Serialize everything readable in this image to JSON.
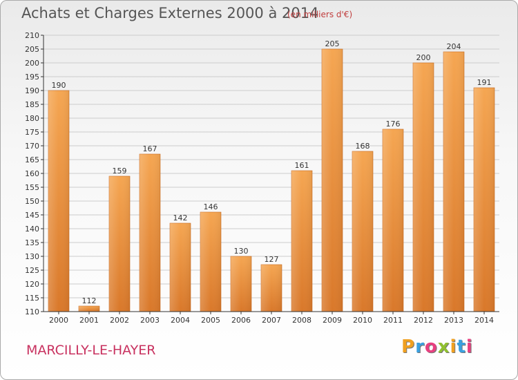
{
  "header": {
    "title": "Achats et Charges Externes 2000 à 2014",
    "subtitle": "(en milliers d'€)"
  },
  "footer": {
    "commune": "MARCILLY-LE-HAYER",
    "logo_text": "Proxiti",
    "logo_colors": [
      "#f0a020",
      "#3aa0e0",
      "#e84080",
      "#90c030",
      "#f0a020",
      "#3aa0e0",
      "#e84080"
    ]
  },
  "colors": {
    "bar_top": "#f5a652",
    "bar_bottom": "#d9782a",
    "grid": "#cccccc",
    "axis": "#333333"
  },
  "chart_data": {
    "type": "bar",
    "title": "Achats et Charges Externes 2000 à 2014",
    "subtitle": "(en milliers d'€)",
    "xlabel": "",
    "ylabel": "",
    "categories": [
      "2000",
      "2001",
      "2002",
      "2003",
      "2004",
      "2005",
      "2006",
      "2007",
      "2008",
      "2009",
      "2010",
      "2011",
      "2012",
      "2013",
      "2014"
    ],
    "values": [
      190,
      112,
      159,
      167,
      142,
      146,
      130,
      127,
      161,
      205,
      168,
      176,
      200,
      204,
      191
    ],
    "ylim": [
      110,
      210
    ],
    "ytick_step": 5,
    "grid": true,
    "data_labels": true
  }
}
